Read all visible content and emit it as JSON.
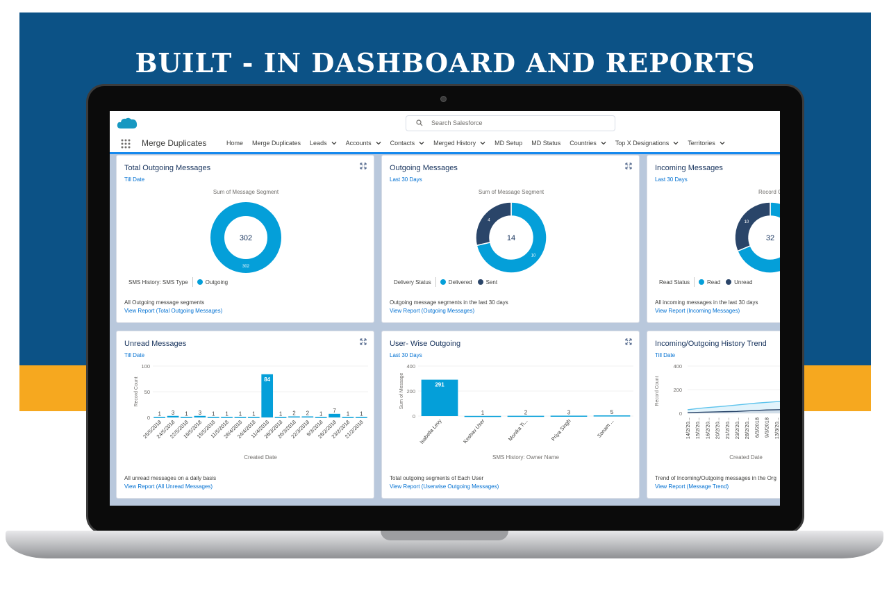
{
  "promo": {
    "title": "BUILT - IN DASHBOARD AND REPORTS"
  },
  "colors": {
    "blue_band": "#0c5286",
    "orange_band": "#f6a81f",
    "accent": "#1589ee",
    "chart_primary": "#049fd9",
    "chart_dark": "#2a4569"
  },
  "header": {
    "search_placeholder": "Search Salesforce",
    "app_name": "Merge Duplicates",
    "nav": [
      {
        "label": "Home",
        "dropdown": false
      },
      {
        "label": "Merge Duplicates",
        "dropdown": false
      },
      {
        "label": "Leads",
        "dropdown": true
      },
      {
        "label": "Accounts",
        "dropdown": true
      },
      {
        "label": "Contacts",
        "dropdown": true
      },
      {
        "label": "Merged History",
        "dropdown": true
      },
      {
        "label": "MD Setup",
        "dropdown": false
      },
      {
        "label": "MD Status",
        "dropdown": false
      },
      {
        "label": "Countries",
        "dropdown": true
      },
      {
        "label": "Top X Designations",
        "dropdown": true
      },
      {
        "label": "Territories",
        "dropdown": true
      }
    ]
  },
  "cards": {
    "total_outgoing": {
      "title": "Total Outgoing Messages",
      "subtitle": "Till Date",
      "chart_label": "Sum of Message Segment",
      "legend_title": "SMS History: SMS Type",
      "desc": "All Outgoing message segments",
      "link": "View Report (Total Outgoing Messages)"
    },
    "outgoing": {
      "title": "Outgoing Messages",
      "subtitle": "Last 30 Days",
      "chart_label": "Sum of Message Segment",
      "legend_title": "Delivery Status",
      "desc": "Outgoing message segments in the last 30 days",
      "link": "View Report (Outgoing Messages)"
    },
    "incoming": {
      "title": "Incoming Messages",
      "subtitle": "Last 30 Days",
      "chart_label": "Record C",
      "legend_title": "Read Status",
      "desc": "All incoming messages in the last 30 days",
      "link": "View Report (Incoming Messages)"
    },
    "unread": {
      "title": "Unread Messages",
      "subtitle": "Till Date",
      "desc": "All unread messages on a daily basis",
      "link": "View Report (All Unread Messages)"
    },
    "user_wise": {
      "title": "User- Wise Outgoing",
      "subtitle": "Last 30 Days",
      "desc": "Total outgoing segments of Each User",
      "link": "View Report (Userwise Outgoing Messages)"
    },
    "trend": {
      "title": "Incoming/Outgoing History Trend",
      "subtitle": "Till Date",
      "desc": "Trend of Incoming/Outgoing messages in the Org",
      "link": "View Report (Message Trend)"
    }
  },
  "chart_data": [
    {
      "type": "pie",
      "id": "total_outgoing",
      "center_label": "302",
      "slices": [
        {
          "name": "Outgoing",
          "value": 302,
          "color": "#049fd9"
        }
      ]
    },
    {
      "type": "pie",
      "id": "outgoing",
      "center_label": "14",
      "slices": [
        {
          "name": "Delivered",
          "value": 10,
          "color": "#049fd9"
        },
        {
          "name": "Sent",
          "value": 4,
          "color": "#2a4569"
        }
      ]
    },
    {
      "type": "pie",
      "id": "incoming",
      "center_label": "32",
      "slices": [
        {
          "name": "Read",
          "value": 22,
          "color": "#049fd9"
        },
        {
          "name": "Unread",
          "value": 10,
          "color": "#2a4569"
        }
      ]
    },
    {
      "type": "bar",
      "id": "unread",
      "xlabel": "Created Date",
      "ylabel": "Record Count",
      "ylim": [
        0,
        100
      ],
      "yticks": [
        0,
        50,
        100
      ],
      "categories": [
        "25/5/2018",
        "24/5/2018",
        "22/5/2018",
        "16/5/2018",
        "15/5/2018",
        "11/5/2018",
        "26/4/2018",
        "24/4/2018",
        "11/4/2018",
        "28/3/2018",
        "26/3/2018",
        "22/3/2018",
        "9/3/2018",
        "28/2/2018",
        "23/2/2018",
        "21/2/2018"
      ],
      "values": [
        1,
        3,
        1,
        3,
        1,
        1,
        1,
        1,
        84,
        1,
        2,
        2,
        1,
        7,
        1,
        1
      ]
    },
    {
      "type": "bar",
      "id": "user_wise",
      "xlabel": "SMS History: Owner Name",
      "ylabel": "Sum of Message",
      "ylim": [
        0,
        400
      ],
      "yticks": [
        0,
        200,
        400
      ],
      "categories": [
        "Isabella Levy",
        "Keshav User",
        "Monika Ti...",
        "Priya Singh",
        "Sonam ..."
      ],
      "values": [
        291,
        1,
        2,
        3,
        5
      ]
    },
    {
      "type": "line",
      "id": "trend",
      "xlabel": "Created Date",
      "ylabel": "Record Count",
      "ylim": [
        0,
        400
      ],
      "yticks": [
        0,
        200,
        400
      ],
      "categories": [
        "14/2/20...",
        "15/2/20...",
        "16/2/20...",
        "20/2/20...",
        "21/2/20...",
        "23/2/20...",
        "28/2/20...",
        "6/3/2018",
        "9/3/2018",
        "13/3/20...",
        "14/3/20..."
      ],
      "series": [
        {
          "values": [
            30,
            40,
            48,
            55,
            62,
            70,
            78,
            86,
            92,
            98,
            104
          ]
        },
        {
          "values": [
            5,
            8,
            10,
            12,
            14,
            16,
            20,
            24,
            28,
            30,
            32
          ]
        }
      ]
    }
  ]
}
